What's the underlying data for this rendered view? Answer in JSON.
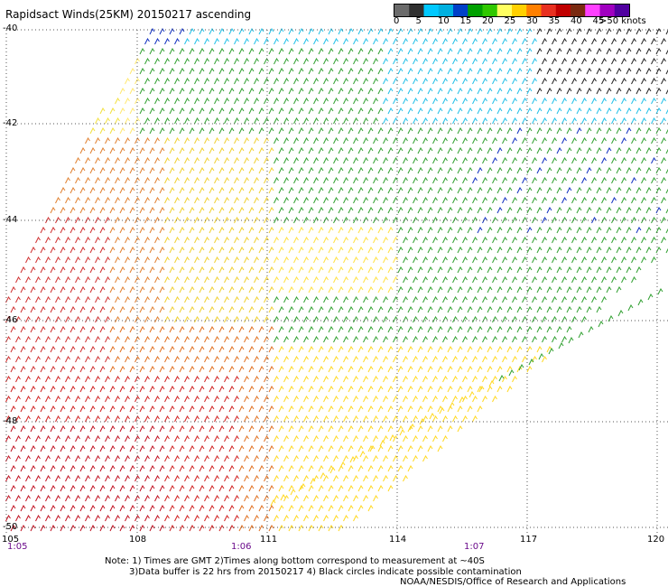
{
  "title": "Rapidsact Winds(25KM) 20150217 ascending",
  "colorbar": {
    "unit_label": ">50 knots",
    "ticks": [
      "0",
      "5",
      "10",
      "15",
      "20",
      "25",
      "30",
      "35",
      "40",
      "45"
    ],
    "colors": [
      "#6b6b6b",
      "#2f2f2f",
      "#00c8ff",
      "#00b0e0",
      "#0040c8",
      "#00a000",
      "#30c800",
      "#ffff60",
      "#ffd000",
      "#ff8000",
      "#e83020",
      "#c00000",
      "#7a2a10",
      "#ff40ff",
      "#a000c0",
      "#5000a0"
    ]
  },
  "axes": {
    "lat_labels": [
      "-40",
      "-42",
      "-44",
      "-46",
      "-48",
      "-50"
    ],
    "lon_labels": [
      "105",
      "108",
      "111",
      "114",
      "117",
      "120"
    ],
    "time_labels": [
      "1:05",
      "1:06",
      "1:07"
    ]
  },
  "notes": {
    "line1": "Note: 1) Times are GMT 2)Times along bottom correspond to measurement at ~40S",
    "line2": "3)Data buffer is 22 hrs from 20150217 4) Black circles indicate possible contamination",
    "line3": "NOAA/NESDIS/Office of Research and Applications"
  }
}
